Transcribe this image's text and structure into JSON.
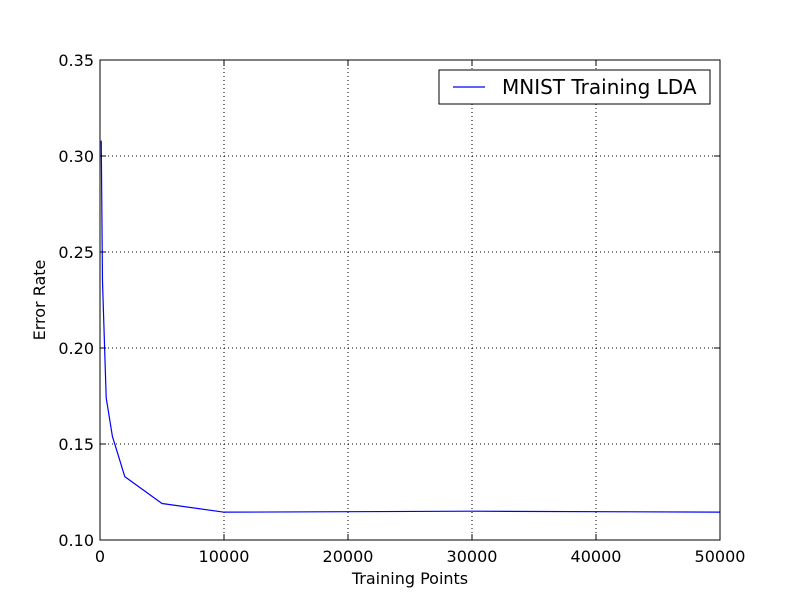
{
  "chart_data": {
    "type": "line",
    "title": "",
    "xlabel": "Training Points",
    "ylabel": "Error Rate",
    "xlim": [
      0,
      50000
    ],
    "ylim": [
      0.1,
      0.35
    ],
    "xticks": [
      0,
      10000,
      20000,
      30000,
      40000,
      50000
    ],
    "yticks": [
      0.1,
      0.15,
      0.2,
      0.25,
      0.3,
      0.35
    ],
    "xtick_labels": [
      "0",
      "10000",
      "20000",
      "30000",
      "40000",
      "50000"
    ],
    "ytick_labels": [
      "0.10",
      "0.15",
      "0.20",
      "0.25",
      "0.30",
      "0.35"
    ],
    "grid": true,
    "legend_position": "top-right",
    "series": [
      {
        "name": "MNIST Training LDA",
        "color": "#0000ff",
        "x": [
          100,
          200,
          500,
          1000,
          2000,
          5000,
          10000,
          30000,
          50000
        ],
        "y": [
          0.308,
          0.235,
          0.174,
          0.154,
          0.133,
          0.119,
          0.1145,
          0.115,
          0.1145
        ]
      }
    ]
  }
}
